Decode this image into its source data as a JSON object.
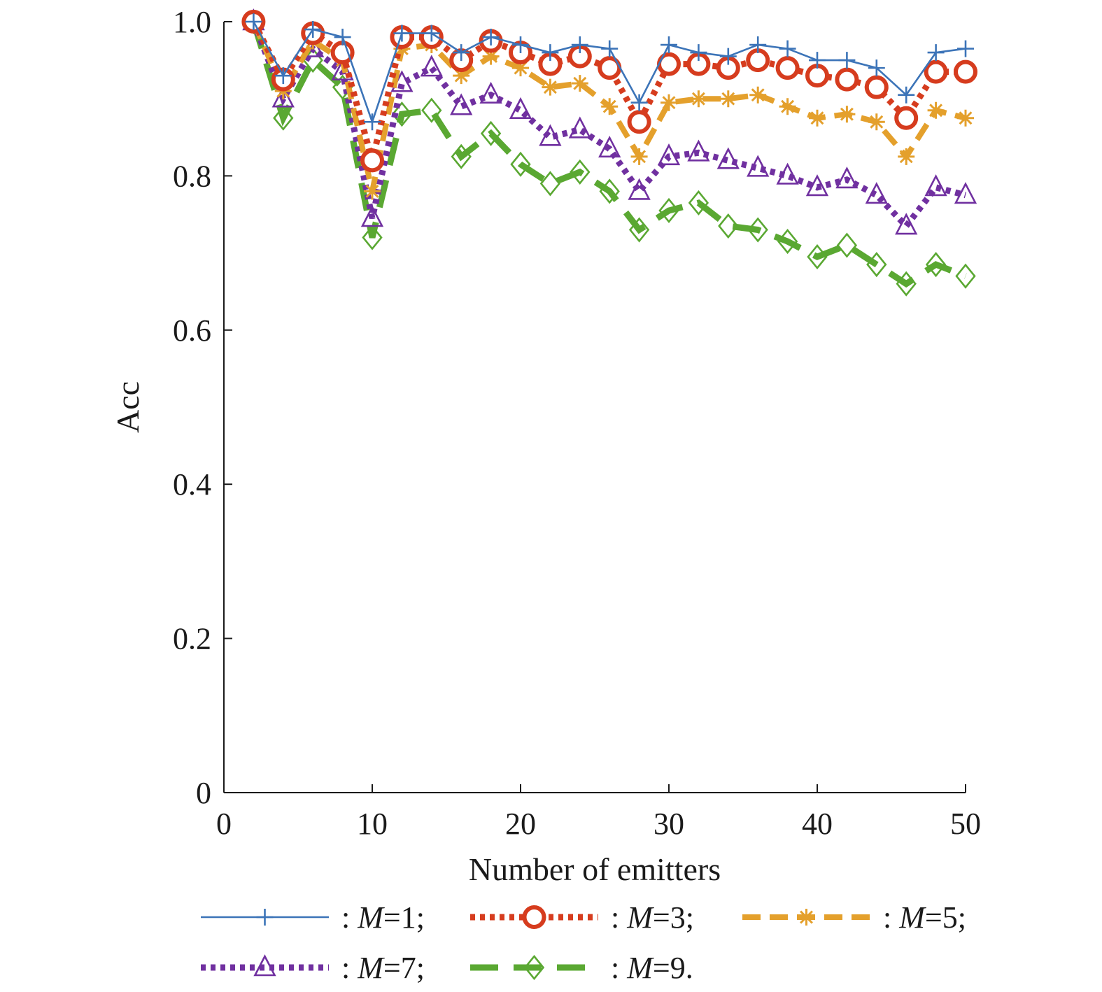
{
  "chart_data": {
    "type": "line",
    "xlabel": "Number of emitters",
    "ylabel": "Acc",
    "xlim": [
      0,
      50
    ],
    "ylim": [
      0,
      1.0
    ],
    "xticks": [
      0,
      10,
      20,
      30,
      40,
      50
    ],
    "yticks": [
      0,
      0.2,
      0.4,
      0.6,
      0.8,
      1.0
    ],
    "xtick_labels": [
      "0",
      "10",
      "20",
      "30",
      "40",
      "50"
    ],
    "ytick_labels": [
      "0",
      "0.2",
      "0.4",
      "0.6",
      "0.8",
      "1.0"
    ],
    "grid": false,
    "legend_position": "bottom",
    "x": [
      2,
      4,
      6,
      8,
      10,
      12,
      14,
      16,
      18,
      20,
      22,
      24,
      26,
      28,
      30,
      32,
      34,
      36,
      38,
      40,
      42,
      44,
      46,
      48,
      50
    ],
    "series": [
      {
        "name": "M=1",
        "legend_parts": [
          ": ",
          "M",
          "=1;"
        ],
        "color": "#3c74b8",
        "marker": "plus",
        "line_style": "solid",
        "values": [
          1.0,
          0.93,
          0.99,
          0.98,
          0.87,
          0.985,
          0.985,
          0.96,
          0.98,
          0.97,
          0.96,
          0.97,
          0.965,
          0.895,
          0.97,
          0.96,
          0.955,
          0.97,
          0.965,
          0.95,
          0.95,
          0.94,
          0.905,
          0.96,
          0.965
        ]
      },
      {
        "name": "M=3",
        "legend_parts": [
          ": ",
          "M",
          "=3;"
        ],
        "color": "#d63c1e",
        "marker": "circle",
        "line_style": "dotted",
        "values": [
          1.0,
          0.925,
          0.985,
          0.96,
          0.82,
          0.98,
          0.98,
          0.95,
          0.975,
          0.96,
          0.945,
          0.955,
          0.94,
          0.87,
          0.945,
          0.945,
          0.94,
          0.95,
          0.94,
          0.93,
          0.925,
          0.915,
          0.875,
          0.935,
          0.935
        ]
      },
      {
        "name": "M=5",
        "legend_parts": [
          ": ",
          "M",
          "=5;"
        ],
        "color": "#e4a02c",
        "marker": "asterisk",
        "line_style": "dashed",
        "values": [
          1.0,
          0.91,
          0.975,
          0.95,
          0.78,
          0.965,
          0.97,
          0.93,
          0.955,
          0.94,
          0.915,
          0.92,
          0.89,
          0.825,
          0.895,
          0.9,
          0.9,
          0.905,
          0.89,
          0.875,
          0.88,
          0.87,
          0.825,
          0.885,
          0.875
        ]
      },
      {
        "name": "M=7",
        "legend_parts": [
          ": ",
          "M",
          "=7;"
        ],
        "color": "#7030a0",
        "marker": "triangle",
        "line_style": "dotted",
        "values": [
          1.0,
          0.9,
          0.965,
          0.935,
          0.745,
          0.92,
          0.94,
          0.89,
          0.905,
          0.885,
          0.85,
          0.86,
          0.835,
          0.78,
          0.825,
          0.83,
          0.82,
          0.81,
          0.8,
          0.785,
          0.795,
          0.775,
          0.735,
          0.785,
          0.775
        ]
      },
      {
        "name": "M=9",
        "legend_parts": [
          ": ",
          "M",
          "=9."
        ],
        "color": "#5aa832",
        "marker": "diamond",
        "line_style": "longdash",
        "values": [
          1.0,
          0.875,
          0.95,
          0.915,
          0.72,
          0.88,
          0.885,
          0.825,
          0.855,
          0.815,
          0.79,
          0.805,
          0.78,
          0.73,
          0.755,
          0.765,
          0.735,
          0.73,
          0.715,
          0.695,
          0.71,
          0.685,
          0.66,
          0.685,
          0.67
        ]
      }
    ]
  }
}
